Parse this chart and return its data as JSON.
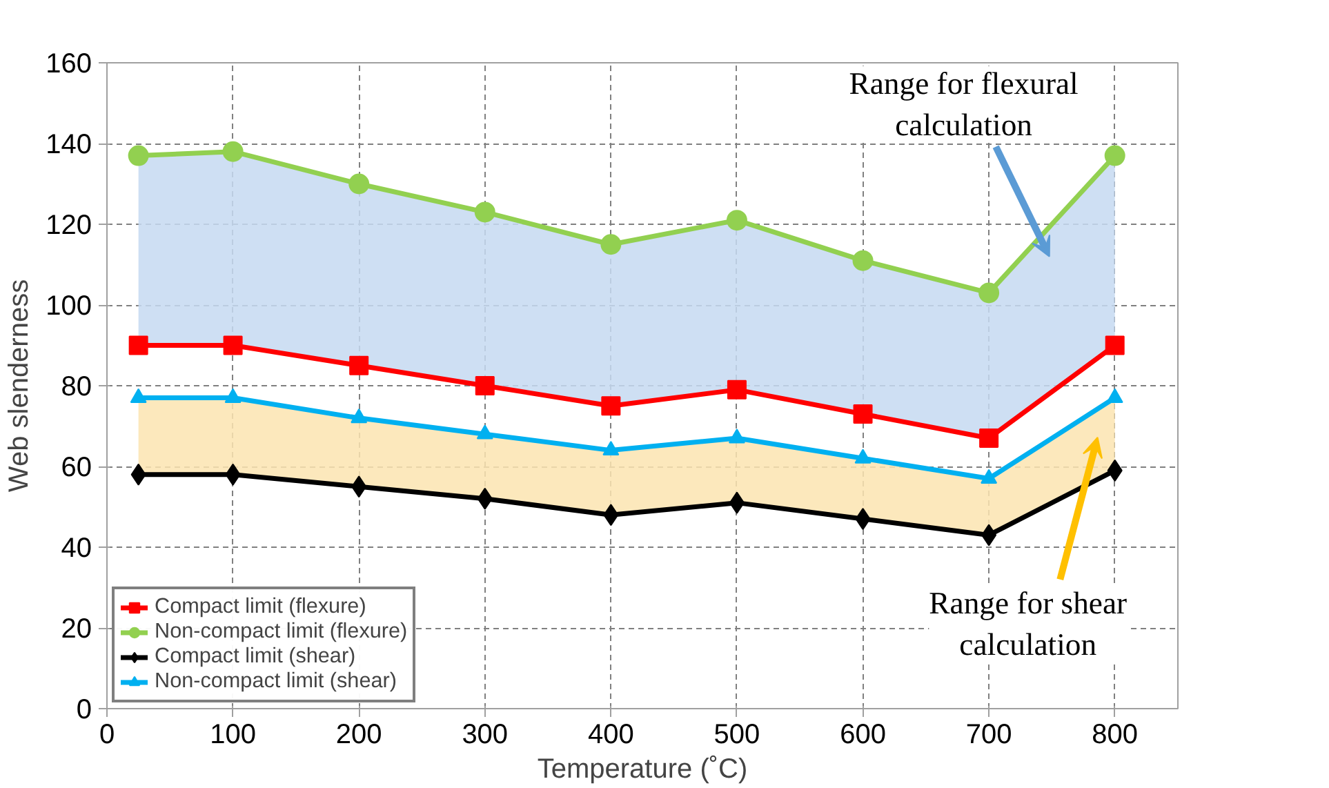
{
  "chart_data": {
    "type": "line",
    "xlabel": "Temperature (˚C)",
    "ylabel": "Web slenderness",
    "x": [
      25,
      100,
      200,
      300,
      400,
      500,
      600,
      700,
      800
    ],
    "xlim": [
      0,
      850
    ],
    "xticks": [
      0,
      100,
      200,
      300,
      400,
      500,
      600,
      700,
      800
    ],
    "ylim": [
      0,
      160
    ],
    "yticks": [
      0,
      20,
      40,
      60,
      80,
      100,
      120,
      140,
      160
    ],
    "grid": true,
    "legend": "bottom left",
    "line_style": "solid",
    "series": [
      {
        "name": "Compact limit (flexure)",
        "color": "#ff0000",
        "marker": "square",
        "values": [
          90,
          90,
          85,
          80,
          75,
          79,
          73,
          67,
          90
        ]
      },
      {
        "name": "Non-compact limit (flexure)",
        "color": "#92d050",
        "marker": "circle",
        "values": [
          137,
          138,
          130,
          123,
          115,
          121,
          111,
          103,
          137
        ],
        "lower": [
          90,
          90,
          85,
          80,
          75,
          79,
          73,
          67,
          90
        ],
        "upper": [
          137,
          138,
          130,
          123,
          115,
          121,
          111,
          103,
          137
        ]
      },
      {
        "name": "Compact limit (shear)",
        "color": "#000000",
        "marker": "diamond",
        "values": [
          58,
          58,
          55,
          52,
          48,
          51,
          47,
          43,
          59
        ],
        "lower": [
          58,
          58,
          55,
          52,
          48,
          51,
          47,
          43,
          59
        ],
        "upper": [
          77,
          77,
          72,
          68,
          64,
          67,
          62,
          57,
          77
        ]
      },
      {
        "name": "Non-compact limit (shear)",
        "color": "#00b0f0",
        "marker": "triangle",
        "values": [
          77,
          77,
          72,
          68,
          64,
          67,
          62,
          57,
          77
        ]
      }
    ],
    "annotations": [
      "Range for flexural calculation",
      "Range for shear calculation"
    ]
  }
}
